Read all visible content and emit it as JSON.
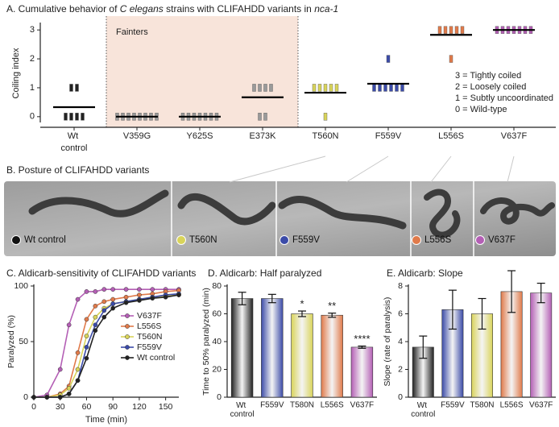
{
  "chart_data": [
    {
      "type": "strip",
      "title_parts": [
        "A. Cumulative behavior of ",
        "C elegans",
        " strains with CLIFAHDD variants in ",
        "nca-1"
      ],
      "ylabel": "Coiling index",
      "categories": [
        "Wt control",
        "V359G",
        "Y625S",
        "E373K",
        "T560N",
        "F559V",
        "L556S",
        "V637F"
      ],
      "colors": [
        "#222222",
        "#9a9a9a",
        "#9a9a9a",
        "#9a9a9a",
        "#d9d45a",
        "#3b4ba8",
        "#e07a4a",
        "#b45fb5"
      ],
      "values": [
        0.33,
        0,
        0,
        0.67,
        0.83,
        1.14,
        2.83,
        3
      ],
      "points": [
        [
          1,
          1,
          0,
          0,
          0,
          0
        ],
        [
          0,
          0,
          0,
          0,
          0,
          0,
          0,
          0
        ],
        [
          0,
          0,
          0,
          0,
          0,
          0,
          0
        ],
        [
          1,
          1,
          1,
          1,
          0,
          0
        ],
        [
          1,
          1,
          1,
          1,
          1,
          0
        ],
        [
          2,
          1,
          1,
          1,
          1,
          1,
          1
        ],
        [
          3,
          3,
          3,
          3,
          3,
          2
        ],
        [
          3,
          3,
          3,
          3,
          3,
          3,
          3
        ]
      ],
      "ylim": [
        -0.2,
        3.2
      ],
      "yticks": [
        0,
        1,
        2,
        3
      ],
      "annotation": "Fainters",
      "legend_lines": [
        "3 = Tightly coiled",
        "2 = Loosely coiled",
        "1 = Subtly uncoordinated",
        "0 = Wild-type"
      ]
    },
    {
      "type": "line",
      "title": "C. Aldicarb-sensitivity of CLIFAHDD variants",
      "xlabel": "Time (min)",
      "ylabel": "Paralyzed (%)",
      "x": [
        0,
        15,
        30,
        40,
        50,
        60,
        70,
        80,
        90,
        105,
        120,
        135,
        150,
        165
      ],
      "xlim": [
        0,
        165
      ],
      "xticks": [
        0,
        30,
        60,
        90,
        120,
        150
      ],
      "ylim": [
        0,
        100
      ],
      "yticks": [
        0,
        50,
        100
      ],
      "series": [
        {
          "name": "V637F",
          "color": "#b45fb5",
          "values": [
            0,
            2,
            25,
            65,
            88,
            95,
            95,
            97,
            97,
            97,
            97,
            97,
            97,
            97
          ]
        },
        {
          "name": "L556S",
          "color": "#e07a4a",
          "values": [
            0,
            0,
            3,
            10,
            40,
            70,
            82,
            86,
            88,
            90,
            92,
            93,
            95,
            96
          ]
        },
        {
          "name": "T560N",
          "color": "#d9d45a",
          "values": [
            0,
            0,
            2,
            8,
            25,
            55,
            72,
            80,
            84,
            86,
            88,
            90,
            91,
            92
          ]
        },
        {
          "name": "F559V",
          "color": "#3b4ba8",
          "values": [
            0,
            0,
            0,
            3,
            15,
            45,
            65,
            78,
            84,
            86,
            88,
            90,
            92,
            93
          ]
        },
        {
          "name": "Wt control",
          "color": "#222222",
          "values": [
            0,
            0,
            0,
            3,
            15,
            35,
            60,
            72,
            80,
            85,
            87,
            89,
            90,
            92
          ]
        }
      ]
    },
    {
      "type": "bar",
      "title": "D. Aldicarb: Half paralyzed",
      "ylabel": "Time to 50% paralyzed (min)",
      "categories": [
        "Wt control",
        "F559V",
        "T580N",
        "L556S",
        "V637F"
      ],
      "colors": [
        "#222222",
        "#3b4ba8",
        "#d9d45a",
        "#e07a4a",
        "#b45fb5"
      ],
      "values": [
        71,
        71,
        60,
        59,
        36
      ],
      "errors": [
        4.5,
        3,
        2,
        1.5,
        0.8
      ],
      "value_annotations": [
        null,
        null,
        "*",
        "**",
        "****"
      ],
      "ylim": [
        0,
        80
      ],
      "yticks": [
        0,
        20,
        40,
        60,
        80
      ]
    },
    {
      "type": "bar",
      "title": "E. Aldicarb: Slope",
      "ylabel": "Slope (rate of paralysis)",
      "categories": [
        "Wt control",
        "F559V",
        "T580N",
        "L556S",
        "V637F"
      ],
      "colors": [
        "#222222",
        "#3b4ba8",
        "#d9d45a",
        "#e07a4a",
        "#b45fb5"
      ],
      "values": [
        3.6,
        6.3,
        6.0,
        7.6,
        7.5
      ],
      "errors": [
        0.8,
        1.4,
        1.1,
        1.5,
        0.7
      ],
      "ylim": [
        0,
        8
      ],
      "yticks": [
        0,
        2,
        4,
        6,
        8
      ]
    }
  ],
  "panel_b": {
    "title": "B. Posture of CLIFAHDD variants",
    "labels": [
      "Wt control",
      "T560N",
      "F559V",
      "L556S",
      "V637F"
    ],
    "colors": [
      "#111111",
      "#d9d45a",
      "#3b4ba8",
      "#e07a4a",
      "#b45fb5"
    ]
  }
}
